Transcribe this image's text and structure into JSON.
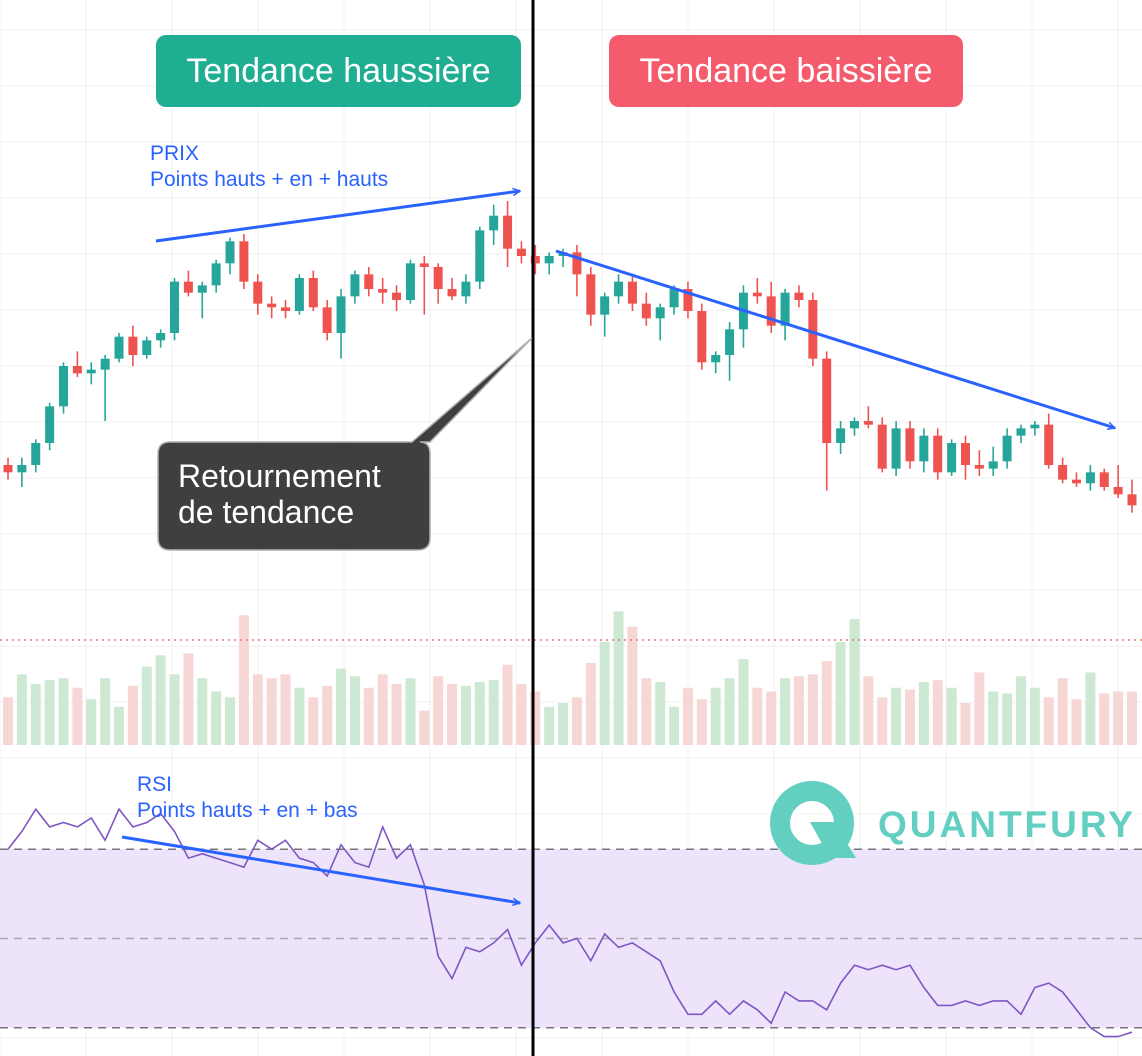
{
  "labels": {
    "uptrend": "Tendance haussière",
    "downtrend": "Tendance baissière",
    "price_note_line1": "PRIX",
    "price_note_line2": "Points hauts + en + hauts",
    "rsi_note_line1": "RSI",
    "rsi_note_line2": "Points hauts + en + bas",
    "reversal_line1": "Retournement",
    "reversal_line2": "de tendance",
    "brand": "QUANTFURY"
  },
  "colors": {
    "up": "#26a69a",
    "down": "#ef5350",
    "trendline": "#2962ff",
    "rsi_line": "#7e57c2",
    "rsi_band": "#ede3fb",
    "uptrend_pill": "#1fae92",
    "downtrend_pill": "#f45c6e",
    "callout": "#3f3f3f",
    "brand": "#62cfc0"
  },
  "chart_data": {
    "type": "candlestick",
    "candles": [
      [
        320,
        322,
        316,
        318
      ],
      [
        318,
        322,
        314,
        320
      ],
      [
        320,
        327,
        318,
        326
      ],
      [
        326,
        337,
        324,
        336
      ],
      [
        336,
        348,
        334,
        347
      ],
      [
        347,
        351,
        344,
        345
      ],
      [
        345,
        348,
        342,
        346
      ],
      [
        346,
        350,
        332,
        349
      ],
      [
        349,
        356,
        348,
        355
      ],
      [
        355,
        358,
        347,
        350
      ],
      [
        350,
        355,
        349,
        354
      ],
      [
        354,
        357,
        352,
        356
      ],
      [
        356,
        371,
        354,
        370
      ],
      [
        370,
        373,
        366,
        367
      ],
      [
        367,
        370,
        360,
        369
      ],
      [
        369,
        376,
        367,
        375
      ],
      [
        375,
        382,
        372,
        381
      ],
      [
        381,
        383,
        368,
        370
      ],
      [
        370,
        372,
        361,
        364
      ],
      [
        364,
        366,
        360,
        363
      ],
      [
        363,
        365,
        360,
        362
      ],
      [
        362,
        372,
        361,
        371
      ],
      [
        371,
        373,
        362,
        363
      ],
      [
        363,
        365,
        354,
        356
      ],
      [
        356,
        368,
        349,
        366
      ],
      [
        366,
        373,
        364,
        372
      ],
      [
        372,
        374,
        366,
        368
      ],
      [
        368,
        371,
        364,
        367
      ],
      [
        367,
        369,
        362,
        365
      ],
      [
        365,
        376,
        364,
        375
      ],
      [
        375,
        377,
        361,
        374
      ],
      [
        374,
        375,
        364,
        368
      ],
      [
        368,
        371,
        365,
        366
      ],
      [
        366,
        372,
        364,
        370
      ],
      [
        370,
        385,
        368,
        384
      ],
      [
        384,
        391,
        380,
        388
      ],
      [
        388,
        392,
        374,
        379
      ],
      [
        379,
        381,
        375,
        377
      ],
      [
        377,
        380,
        372,
        375
      ],
      [
        375,
        378,
        372,
        377
      ],
      [
        377,
        379,
        374,
        378
      ],
      [
        378,
        380,
        366,
        372
      ],
      [
        372,
        374,
        358,
        361
      ],
      [
        361,
        367,
        355,
        366
      ],
      [
        366,
        372,
        364,
        370
      ],
      [
        370,
        372,
        362,
        364
      ],
      [
        364,
        367,
        358,
        360
      ],
      [
        360,
        364,
        354,
        363
      ],
      [
        363,
        369,
        361,
        368
      ],
      [
        368,
        370,
        360,
        362
      ],
      [
        362,
        364,
        346,
        348
      ],
      [
        348,
        351,
        345,
        350
      ],
      [
        350,
        359,
        343,
        357
      ],
      [
        357,
        369,
        352,
        367
      ],
      [
        367,
        371,
        364,
        366
      ],
      [
        366,
        370,
        356,
        358
      ],
      [
        358,
        368,
        354,
        367
      ],
      [
        367,
        369,
        363,
        365
      ],
      [
        365,
        367,
        347,
        349
      ],
      [
        349,
        351,
        313,
        326
      ],
      [
        326,
        332,
        323,
        330
      ],
      [
        330,
        333,
        328,
        332
      ],
      [
        332,
        336,
        330,
        331
      ],
      [
        331,
        333,
        318,
        319
      ],
      [
        319,
        332,
        317,
        330
      ],
      [
        330,
        332,
        319,
        321
      ],
      [
        321,
        330,
        318,
        328
      ],
      [
        328,
        330,
        316,
        318
      ],
      [
        318,
        327,
        317,
        326
      ],
      [
        326,
        328,
        316,
        320
      ],
      [
        320,
        324,
        317,
        319
      ],
      [
        319,
        325,
        317,
        321
      ],
      [
        321,
        330,
        319,
        328
      ],
      [
        328,
        331,
        326,
        330
      ],
      [
        330,
        332,
        328,
        331
      ],
      [
        331,
        334,
        319,
        320
      ],
      [
        320,
        322,
        315,
        316
      ],
      [
        316,
        318,
        314,
        315
      ],
      [
        315,
        320,
        313,
        318
      ],
      [
        318,
        319,
        313,
        314
      ],
      [
        314,
        320,
        311,
        312
      ],
      [
        312,
        316,
        307,
        309
      ]
    ],
    "volume": [
      25,
      37,
      32,
      34,
      35,
      30,
      24,
      35,
      20,
      31,
      41,
      47,
      37,
      48,
      35,
      28,
      25,
      68,
      37,
      35,
      37,
      30,
      25,
      31,
      40,
      36,
      30,
      37,
      32,
      35,
      18,
      36,
      32,
      31,
      33,
      34,
      42,
      32,
      28,
      20,
      22,
      25,
      43,
      54,
      70,
      62,
      35,
      33,
      20,
      30,
      24,
      30,
      35,
      45,
      30,
      28,
      35,
      36,
      37,
      44,
      54,
      66,
      36,
      25,
      30,
      29,
      33,
      34,
      30,
      22,
      38,
      28,
      27,
      36,
      30,
      25,
      35,
      24,
      38,
      27,
      28,
      28
    ],
    "volume_ref": 55,
    "rsi": [
      70,
      74,
      79,
      75,
      76,
      75,
      77,
      72,
      79,
      75,
      76,
      78,
      74,
      68,
      69,
      68,
      67,
      66,
      72,
      70,
      72,
      68,
      67,
      64,
      71,
      67,
      66,
      75,
      68,
      71,
      62,
      46,
      41,
      48,
      47,
      49,
      52,
      44,
      49,
      53,
      49,
      50,
      45,
      51,
      48,
      49,
      47,
      45,
      38,
      33,
      33,
      36,
      33,
      36,
      34,
      31,
      38,
      36,
      36,
      34,
      40,
      44,
      43,
      44,
      43,
      44,
      39,
      35,
      35,
      36,
      35,
      36,
      36,
      33,
      39,
      40,
      38,
      34,
      30,
      28,
      28,
      29
    ],
    "rsi_ylim": [
      25,
      90
    ],
    "rsi_bands": [
      70,
      50,
      30
    ]
  }
}
